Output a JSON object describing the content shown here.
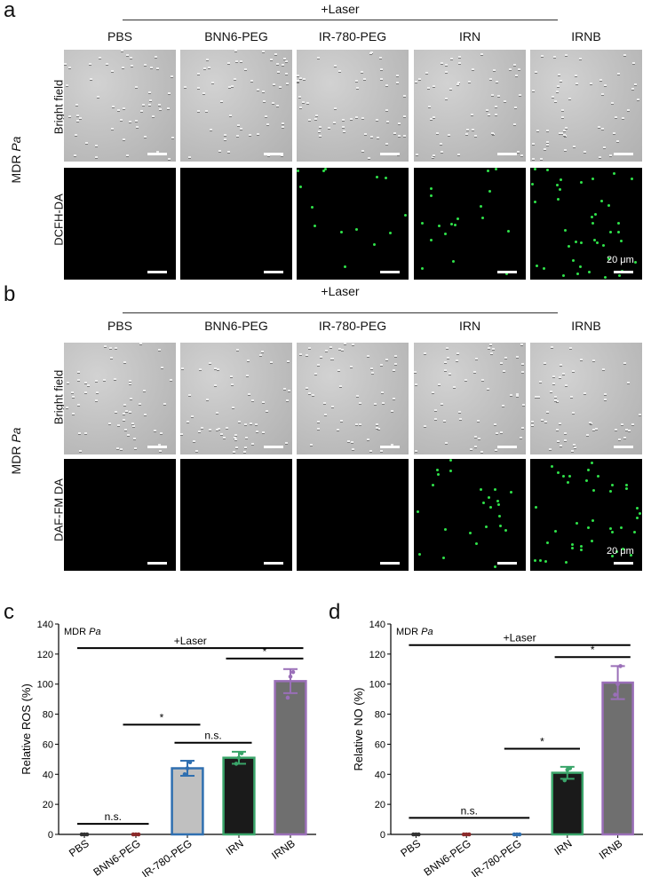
{
  "panel_a": {
    "letter": "a",
    "laser": "+Laser",
    "mdr": "MDR",
    "mdr_italic": "Pa",
    "columns": [
      "PBS",
      "BNN6-PEG",
      "IR-780-PEG",
      "IRN",
      "IRNB"
    ],
    "rows": [
      "Bright field",
      "DCFH-DA"
    ],
    "scale": "20 μm"
  },
  "panel_b": {
    "letter": "b",
    "laser": "+Laser",
    "mdr": "MDR",
    "mdr_italic": "Pa",
    "columns": [
      "PBS",
      "BNN6-PEG",
      "IR-780-PEG",
      "IRN",
      "IRNB"
    ],
    "rows": [
      "Bright field",
      "DAF-FM DA"
    ],
    "scale": "20 μm"
  },
  "chart_data": [
    {
      "type": "bar",
      "panel": "c",
      "annotation": "MDR",
      "annotation_italic": "Pa",
      "laser_label": "+Laser",
      "ylabel": "Relative ROS  (%)",
      "categories": [
        "PBS",
        "BNN6-PEG",
        "IR-780-PEG",
        "IRN",
        "IRNB"
      ],
      "values": [
        0,
        0,
        44,
        51,
        102
      ],
      "errors": [
        0,
        0,
        5,
        4,
        8
      ],
      "points": [
        [
          0,
          0,
          0
        ],
        [
          0,
          0,
          0
        ],
        [
          40,
          44,
          48
        ],
        [
          47,
          51,
          54
        ],
        [
          91,
          105,
          108
        ]
      ],
      "bar_colors": [
        "#cccccc",
        "#cccccc",
        "#c0c0c0",
        "#1a1a1a",
        "#6f6f6f"
      ],
      "edge_colors": [
        "#333333",
        "#8b2a2a",
        "#2f6fb0",
        "#3aa56a",
        "#9a6fb8"
      ],
      "ylim": [
        0,
        140
      ],
      "yticks": [
        0,
        20,
        40,
        60,
        80,
        100,
        120,
        140
      ],
      "significance": [
        {
          "from": 0,
          "to": 1,
          "label": "n.s.",
          "y": 7
        },
        {
          "from": 1,
          "to": 2,
          "label": "*",
          "y": 73
        },
        {
          "from": 2,
          "to": 3,
          "label": "n.s.",
          "y": 61
        },
        {
          "from": 3,
          "to": 4,
          "label": "*",
          "y": 117
        },
        {
          "from": 0,
          "to": 4,
          "label": "",
          "y": 124
        }
      ]
    },
    {
      "type": "bar",
      "panel": "d",
      "annotation": "MDR",
      "annotation_italic": "Pa",
      "laser_label": "+Laser",
      "ylabel": "Relative NO  (%)",
      "categories": [
        "PBS",
        "BNN6-PEG",
        "IR-780-PEG",
        "IRN",
        "IRNB"
      ],
      "values": [
        0,
        0,
        0,
        41,
        101
      ],
      "errors": [
        0,
        0,
        0,
        4,
        11
      ],
      "points": [
        [
          0,
          0,
          0
        ],
        [
          0,
          0,
          0
        ],
        [
          0,
          0,
          0
        ],
        [
          36,
          43,
          44
        ],
        [
          93,
          100,
          112
        ]
      ],
      "bar_colors": [
        "#cccccc",
        "#cccccc",
        "#cccccc",
        "#1a1a1a",
        "#6f6f6f"
      ],
      "edge_colors": [
        "#333333",
        "#8b2a2a",
        "#2f6fb0",
        "#3aa56a",
        "#9a6fb8"
      ],
      "ylim": [
        0,
        140
      ],
      "yticks": [
        0,
        20,
        40,
        60,
        80,
        100,
        120,
        140
      ],
      "significance": [
        {
          "from": 0,
          "to": 2,
          "label": "n.s.",
          "y": 11
        },
        {
          "from": 2,
          "to": 3,
          "label": "*",
          "y": 57
        },
        {
          "from": 3,
          "to": 4,
          "label": "*",
          "y": 118
        },
        {
          "from": 0,
          "to": 4,
          "label": "",
          "y": 126
        }
      ]
    }
  ]
}
